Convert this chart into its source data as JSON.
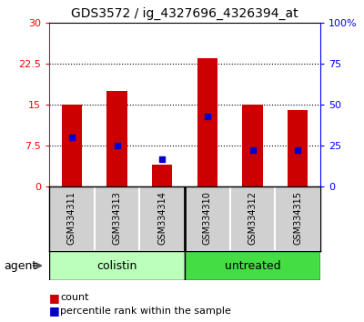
{
  "title": "GDS3572 / ig_4327696_4326394_at",
  "samples": [
    "GSM334311",
    "GSM334313",
    "GSM334314",
    "GSM334310",
    "GSM334312",
    "GSM334315"
  ],
  "groups": [
    "colistin",
    "colistin",
    "colistin",
    "untreated",
    "untreated",
    "untreated"
  ],
  "counts": [
    15.0,
    17.5,
    4.0,
    23.5,
    15.0,
    14.0
  ],
  "percentile_ranks": [
    30.0,
    25.0,
    17.0,
    43.0,
    22.5,
    22.5
  ],
  "left_ylim": [
    0,
    30
  ],
  "left_yticks": [
    0,
    7.5,
    15,
    22.5,
    30
  ],
  "right_ylim": [
    0,
    100
  ],
  "right_yticks": [
    0,
    25,
    50,
    75,
    100
  ],
  "right_yticklabels": [
    "0",
    "25",
    "50",
    "75",
    "100%"
  ],
  "bar_color": "#cc0000",
  "dot_color": "#0000cc",
  "bar_width": 0.45,
  "colistin_color_light": "#bbffbb",
  "colistin_color": "#bbffbb",
  "untreated_color": "#44dd44",
  "sample_bg": "#d0d0d0",
  "legend_count": "count",
  "legend_percentile": "percentile rank within the sample",
  "plot_bg": "#ffffff"
}
